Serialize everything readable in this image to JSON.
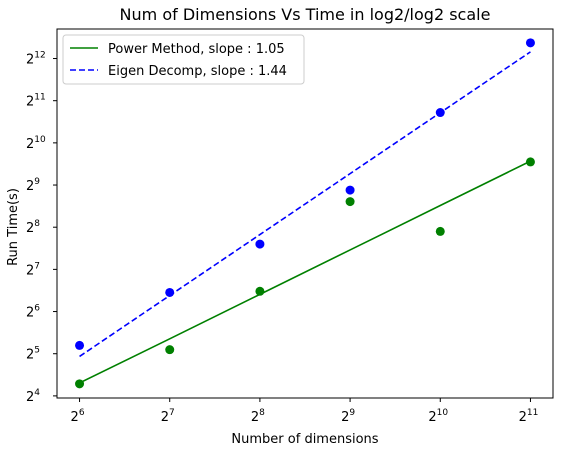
{
  "chart_data": {
    "type": "scatter",
    "title": "Num of Dimensions Vs Time in log2/log2 scale",
    "xlabel": "Number of dimensions",
    "ylabel": "Run Time(s)",
    "scale": "log2/log2",
    "xlim_log2": [
      5.75,
      11.25
    ],
    "ylim_log2": [
      3.95,
      12.7
    ],
    "x_ticks": [
      {
        "base": "2",
        "exp": "6",
        "log2": 6
      },
      {
        "base": "2",
        "exp": "7",
        "log2": 7
      },
      {
        "base": "2",
        "exp": "8",
        "log2": 8
      },
      {
        "base": "2",
        "exp": "9",
        "log2": 9
      },
      {
        "base": "2",
        "exp": "10",
        "log2": 10
      },
      {
        "base": "2",
        "exp": "11",
        "log2": 11
      }
    ],
    "y_ticks": [
      {
        "base": "2",
        "exp": "4",
        "log2": 4
      },
      {
        "base": "2",
        "exp": "5",
        "log2": 5
      },
      {
        "base": "2",
        "exp": "6",
        "log2": 6
      },
      {
        "base": "2",
        "exp": "7",
        "log2": 7
      },
      {
        "base": "2",
        "exp": "8",
        "log2": 8
      },
      {
        "base": "2",
        "exp": "9",
        "log2": 9
      },
      {
        "base": "2",
        "exp": "10",
        "log2": 10
      },
      {
        "base": "2",
        "exp": "11",
        "log2": 11
      },
      {
        "base": "2",
        "exp": "12",
        "log2": 12
      }
    ],
    "legend_position": "top-left",
    "grid": false,
    "x": [
      64,
      128,
      256,
      512,
      1024,
      2048
    ],
    "series": [
      {
        "name": "Power Method, slope : 1.05",
        "color": "#008000",
        "line_style": "solid",
        "points_y": [
          19.5,
          34.2,
          89.3,
          390,
          239,
          749
        ],
        "fit_y": [
          19.8,
          40.9,
          84.9,
          176.2,
          365.6,
          758.6
        ]
      },
      {
        "name": "Eigen Decomp, slope : 1.44",
        "color": "#0000ff",
        "line_style": "dashed",
        "points_y": [
          36.7,
          87.6,
          194.0,
          471,
          1685,
          5300
        ],
        "fit_y": [
          30.6,
          83.3,
          226.8,
          617.6,
          1681.8,
          4568.9
        ]
      }
    ]
  }
}
